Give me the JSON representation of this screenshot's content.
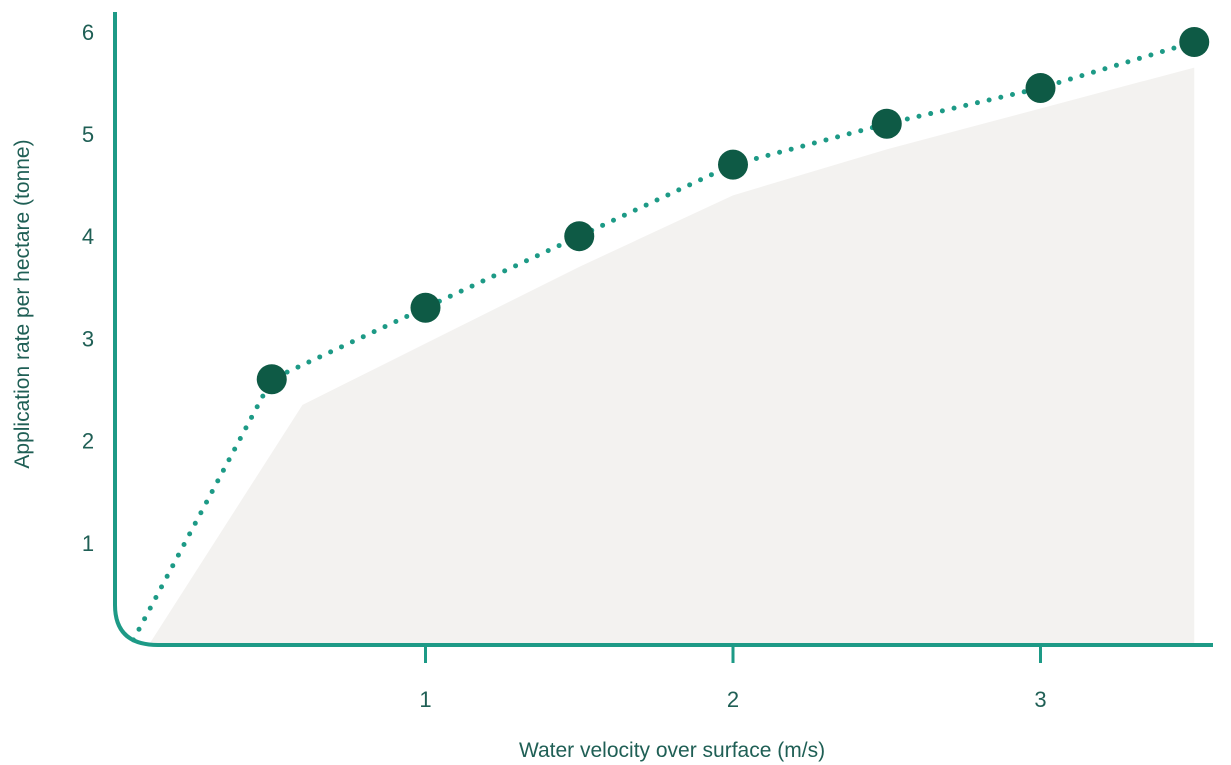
{
  "colors": {
    "axis": "#1d9a86",
    "line": "#1d9a86",
    "marker": "#0e5a45",
    "area": "#f3f2f0",
    "text": "#1f5f55"
  },
  "chart_data": {
    "type": "line",
    "title": "",
    "xlabel": "Water velocity over surface (m/s)",
    "ylabel": "Application rate per hectare (tonne)",
    "xlim": [
      0,
      3.5
    ],
    "ylim": [
      0,
      6
    ],
    "x_ticks": [
      1,
      2,
      3
    ],
    "y_ticks": [
      1,
      2,
      3,
      4,
      5,
      6
    ],
    "grid": false,
    "legend": "none",
    "series": [
      {
        "style": "dotted-line-with-markers",
        "x": [
          0.5,
          1.0,
          1.5,
          2.0,
          2.5,
          3.0,
          3.5
        ],
        "y": [
          2.6,
          3.3,
          4.0,
          4.7,
          5.1,
          5.45,
          5.9
        ]
      }
    ],
    "shaded_area": {
      "x": [
        0.1,
        0.6,
        1.0,
        1.5,
        2.0,
        2.5,
        3.0,
        3.5
      ],
      "y": [
        0.0,
        2.35,
        2.95,
        3.7,
        4.4,
        4.85,
        5.25,
        5.65
      ]
    }
  }
}
